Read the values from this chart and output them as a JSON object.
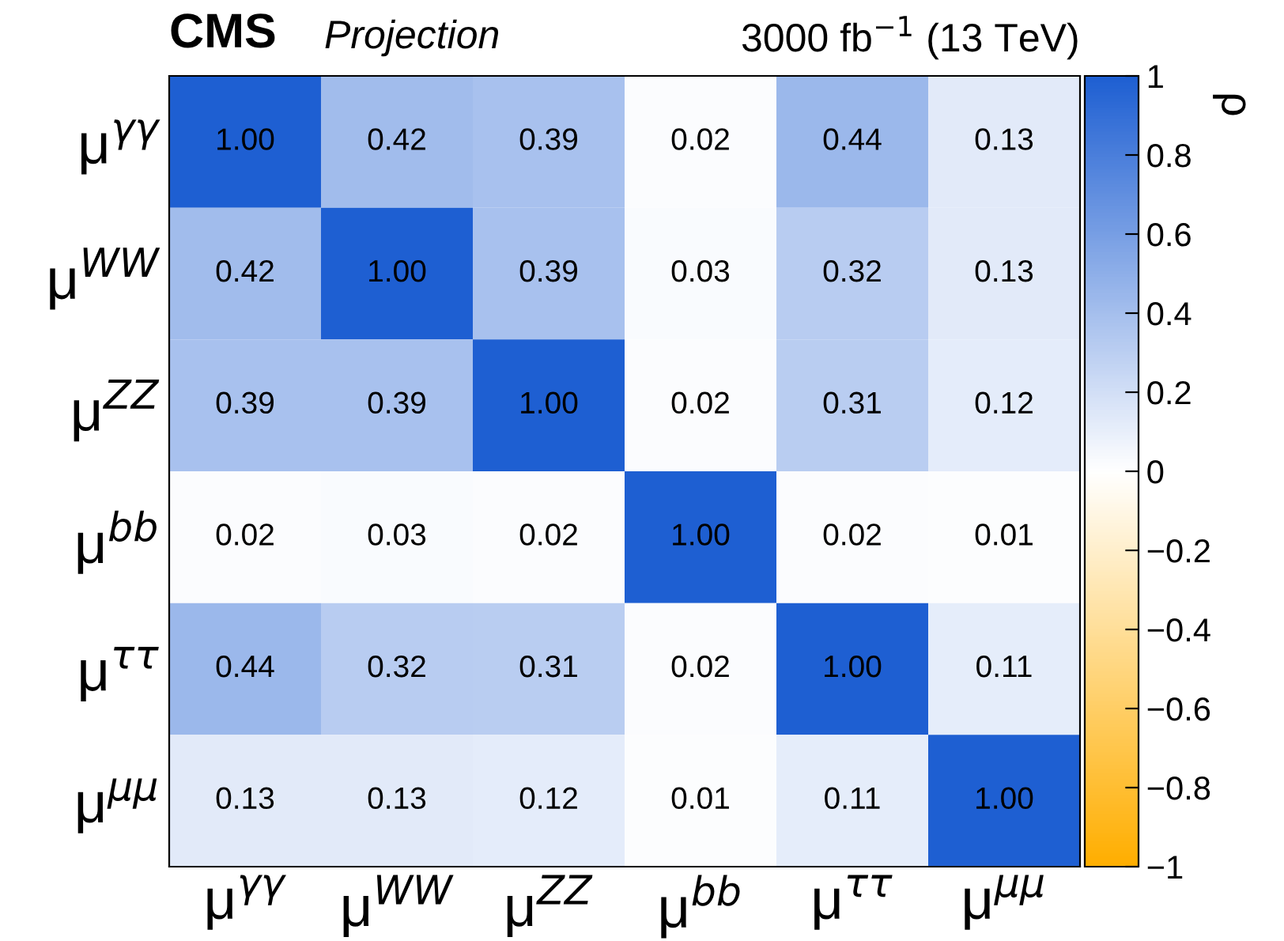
{
  "chart_data": {
    "type": "heatmap",
    "title": "CMS",
    "subtitle": "Projection",
    "annotations": [
      "3000 fb$^{−1}$ (13 TeV)"
    ],
    "categories": [
      "μ$^{γγ}$",
      "μ$^{WW}$",
      "μ$^{ZZ}$",
      "μ$^{bb}$",
      "μ$^{ττ}$",
      "μ$^{μμ}$"
    ],
    "y_categories": [
      "μ$^{γγ}$",
      "μ$^{WW}$",
      "μ$^{ZZ}$",
      "μ$^{bb}$",
      "μ$^{ττ}$",
      "μ$^{μμ}$"
    ],
    "cells": [
      [
        1.0,
        0.42,
        0.39,
        0.02,
        0.44,
        0.13
      ],
      [
        0.42,
        1.0,
        0.39,
        0.03,
        0.32,
        0.13
      ],
      [
        0.39,
        0.39,
        1.0,
        0.02,
        0.31,
        0.12
      ],
      [
        0.02,
        0.03,
        0.02,
        1.0,
        0.02,
        0.01
      ],
      [
        0.44,
        0.32,
        0.31,
        0.02,
        1.0,
        0.11
      ],
      [
        0.13,
        0.13,
        0.12,
        0.01,
        0.11,
        1.0
      ]
    ],
    "cell_labels": [
      [
        "1.00",
        "0.42",
        "0.39",
        "0.02",
        "0.44",
        "0.13"
      ],
      [
        "0.42",
        "1.00",
        "0.39",
        "0.03",
        "0.32",
        "0.13"
      ],
      [
        "0.39",
        "0.39",
        "1.00",
        "0.02",
        "0.31",
        "0.12"
      ],
      [
        "0.02",
        "0.03",
        "0.02",
        "1.00",
        "0.02",
        "0.01"
      ],
      [
        "0.44",
        "0.32",
        "0.31",
        "0.02",
        "1.00",
        "0.11"
      ],
      [
        "0.13",
        "0.13",
        "0.12",
        "0.01",
        "0.11",
        "1.00"
      ]
    ],
    "clabel": "ρ",
    "clim": [
      -1,
      1
    ],
    "cticks": [
      {
        "value": -1,
        "label": "−1"
      },
      {
        "value": -0.8,
        "label": "−0.8"
      },
      {
        "value": -0.6,
        "label": "−0.6"
      },
      {
        "value": -0.4,
        "label": "−0.4"
      },
      {
        "value": -0.2,
        "label": "−0.2"
      },
      0,
      0.2,
      0.4,
      0.6,
      0.8,
      1
    ]
  }
}
